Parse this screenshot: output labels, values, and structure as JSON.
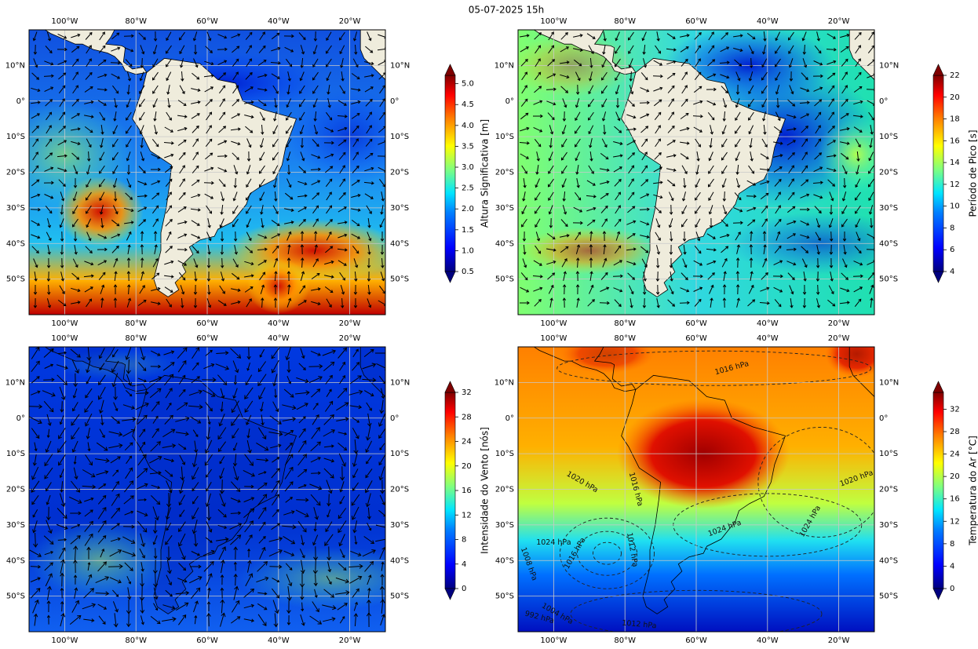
{
  "title": "05-07-2025 15h",
  "lonlim": [
    -110,
    -10
  ],
  "latlim": [
    -60,
    20
  ],
  "lon_ticks": [
    {
      "value": -100,
      "label": "100°W"
    },
    {
      "value": -80,
      "label": "80°W"
    },
    {
      "value": -60,
      "label": "60°W"
    },
    {
      "value": -40,
      "label": "40°W"
    },
    {
      "value": -20,
      "label": "20°W"
    }
  ],
  "lat_ticks": [
    {
      "value": 10,
      "label": "10°N"
    },
    {
      "value": 0,
      "label": "0°"
    },
    {
      "value": -10,
      "label": "10°S"
    },
    {
      "value": -20,
      "label": "20°S"
    },
    {
      "value": -30,
      "label": "30°S"
    },
    {
      "value": -40,
      "label": "40°S"
    },
    {
      "value": -50,
      "label": "50°S"
    }
  ],
  "panels": [
    {
      "colorbar_label": "Altura Significativa [m]",
      "cbar_lim": [
        0.5,
        5.2
      ],
      "cbar_ticks": [
        0.5,
        {
          "value": 1,
          "label": "1.0"
        },
        1.5,
        {
          "value": 2,
          "label": "2.0"
        },
        2.5,
        {
          "value": 3,
          "label": "3.0"
        },
        3.5,
        {
          "value": 4,
          "label": "4.0"
        },
        4.5,
        {
          "value": 5,
          "label": "5.0"
        }
      ]
    },
    {
      "colorbar_label": "Período de Pico [s]",
      "cbar_lim": [
        4,
        22
      ],
      "cbar_ticks": [
        4,
        6,
        8,
        10,
        12,
        14,
        16,
        18,
        20,
        22
      ]
    },
    {
      "colorbar_label": "Intensidade do Vento [nós]",
      "cbar_lim": [
        0,
        32
      ],
      "cbar_ticks": [
        0,
        4,
        8,
        12,
        16,
        20,
        24,
        28,
        32
      ]
    },
    {
      "colorbar_label": "Temperatura do Ar [°C]",
      "cbar_lim": [
        0,
        35
      ],
      "cbar_ticks": [
        0,
        4,
        8,
        12,
        16,
        20,
        24,
        28,
        32
      ],
      "contour_labels": [
        "1016 hPa",
        "1020 hPa",
        "1016 hPa",
        "1024 hPa",
        "1016 hPa",
        "1012 hPa",
        "1024 hPa",
        "1024 hPa",
        "1020 hPa",
        "1008 hPa",
        "1004 hPa",
        "992 hPa",
        "1012 hPa"
      ]
    }
  ]
}
